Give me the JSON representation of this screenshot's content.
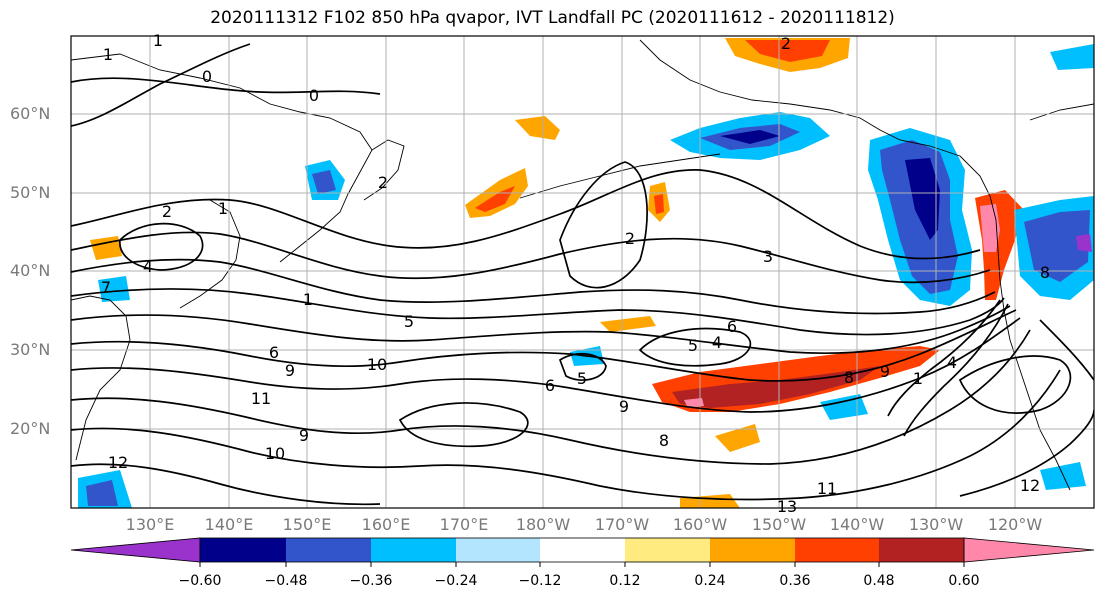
{
  "title": "2020111312 F102 850 hPa qvapor, IVT Landfall PC (2020111612 - 2020111812)",
  "latitude_labels": [
    "60°N",
    "50°N",
    "40°N",
    "30°N",
    "20°N"
  ],
  "longitude_labels": [
    "130°E",
    "140°E",
    "150°E",
    "160°E",
    "170°E",
    "180°W",
    "170°W",
    "160°W",
    "150°W",
    "140°W",
    "130°W",
    "120°W"
  ],
  "colorbar": {
    "tick_labels": [
      "−0.60",
      "−0.48",
      "−0.36",
      "−0.24",
      "−0.12",
      "0.12",
      "0.24",
      "0.36",
      "0.48",
      "0.60"
    ],
    "colors": [
      "#9933cc",
      "#00008b",
      "#3355cc",
      "#00bfff",
      "#b3e5ff",
      "#ffffff",
      "#ffeb80",
      "#ffa500",
      "#ff4000",
      "#b22222",
      "#ff88aa"
    ]
  },
  "contour_labels": [
    "1",
    "1",
    "0",
    "0",
    "2",
    "1",
    "2",
    "4",
    "7",
    "1",
    "5",
    "6",
    "9",
    "11",
    "10",
    "12",
    "10",
    "9",
    "8",
    "9",
    "6",
    "5",
    "4",
    "5",
    "2",
    "3",
    "6",
    "8",
    "9",
    "1",
    "4",
    "11",
    "12",
    "13",
    "2",
    "8"
  ]
}
